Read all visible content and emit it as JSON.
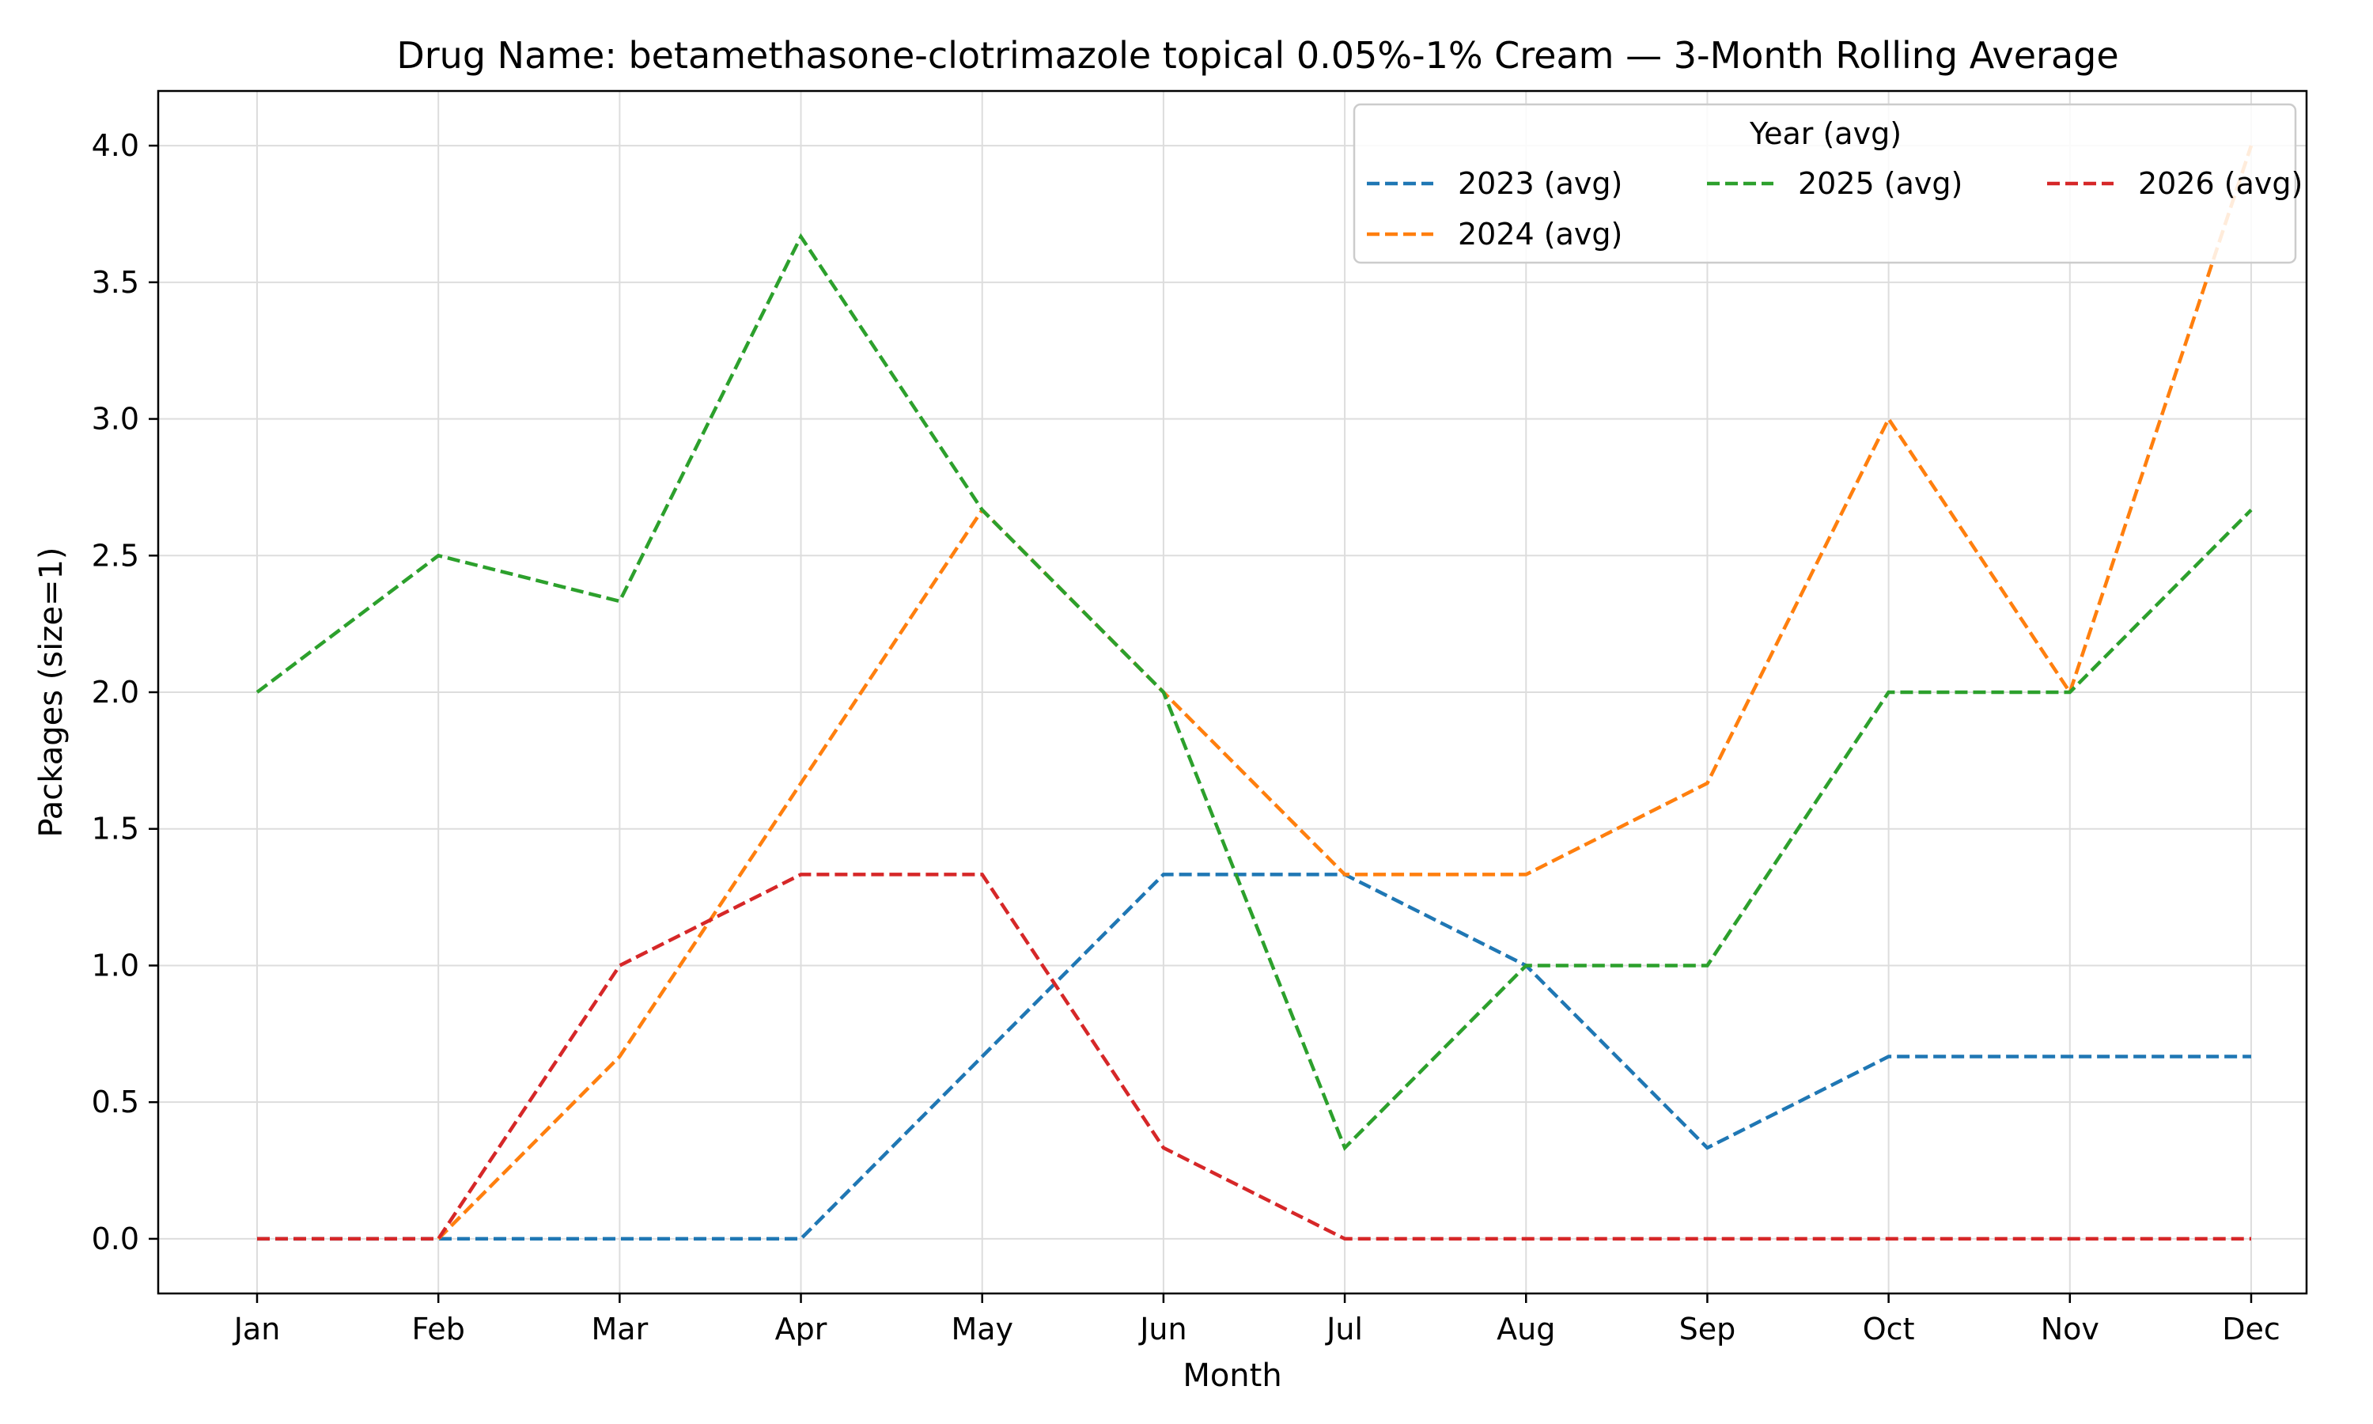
{
  "chart_data": {
    "type": "line",
    "title": "Drug Name: betamethasone-clotrimazole topical 0.05%-1% Cream — 3-Month Rolling Average",
    "xlabel": "Month",
    "ylabel": "Packages (size=1)",
    "categories": [
      "Jan",
      "Feb",
      "Mar",
      "Apr",
      "May",
      "Jun",
      "Jul",
      "Aug",
      "Sep",
      "Oct",
      "Nov",
      "Dec"
    ],
    "ylim": [
      -0.2,
      4.2
    ],
    "yticks": [
      "0.0",
      "0.5",
      "1.0",
      "1.5",
      "2.0",
      "2.5",
      "3.0",
      "3.5",
      "4.0"
    ],
    "ytick_values": [
      0,
      0.5,
      1.0,
      1.5,
      2.0,
      2.5,
      3.0,
      3.5,
      4.0
    ],
    "grid": true,
    "legend": {
      "title": "Year (avg)",
      "placement": "top-right",
      "columns": 3
    },
    "series": [
      {
        "name": "2023 (avg)",
        "color": "#1f77b4",
        "values": [
          0,
          0,
          0,
          0,
          0.667,
          1.333,
          1.333,
          1.0,
          0.333,
          0.667,
          0.667,
          0.667
        ]
      },
      {
        "name": "2024 (avg)",
        "color": "#ff7f0e",
        "values": [
          null,
          0,
          0.667,
          1.667,
          2.667,
          2.0,
          1.333,
          1.333,
          1.667,
          3.0,
          2.0,
          4.0
        ]
      },
      {
        "name": "2025 (avg)",
        "color": "#2ca02c",
        "values": [
          2.0,
          2.5,
          2.333,
          3.667,
          2.667,
          2.0,
          0.333,
          1.0,
          1.0,
          2.0,
          2.0,
          2.667
        ]
      },
      {
        "name": "2026 (avg)",
        "color": "#d62728",
        "values": [
          0,
          0,
          1.0,
          1.333,
          1.333,
          0.333,
          0,
          0,
          0,
          0,
          0,
          0
        ]
      }
    ]
  }
}
